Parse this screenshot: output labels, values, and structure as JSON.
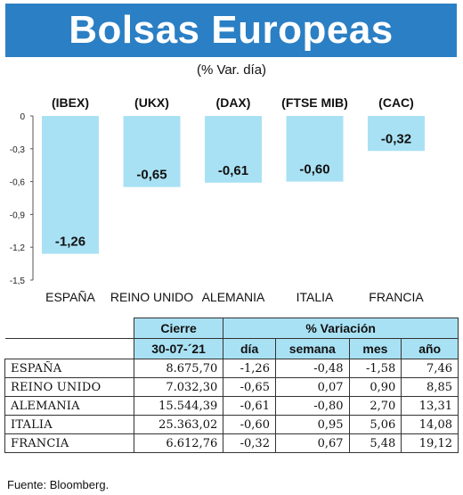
{
  "title": "Bolsas Europeas",
  "subtitle": "(% Var. día)",
  "chart_data": {
    "type": "bar",
    "indices": [
      "(IBEX)",
      "(UKX)",
      "(DAX)",
      "(FTSE MIB)",
      "(CAC)"
    ],
    "categories": [
      "ESPAÑA",
      "REINO UNIDO",
      "ALEMANIA",
      "ITALIA",
      "FRANCIA"
    ],
    "values": [
      -1.26,
      -0.65,
      -0.61,
      -0.6,
      -0.32
    ],
    "value_labels": [
      "-1,26",
      "-0,65",
      "-0,61",
      "-0,60",
      "-0,32"
    ],
    "ylim": [
      -1.5,
      0
    ],
    "yticks": [
      0,
      -0.3,
      -0.6,
      -0.9,
      -1.2,
      -1.5
    ],
    "ytick_labels": [
      "0",
      "-0,3",
      "-0,6",
      "-0,9",
      "-1,2",
      "-1,5"
    ],
    "bar_color": "#a9e1f4",
    "grid": false
  },
  "table": {
    "header_cierre": "Cierre",
    "header_variacion": "% Variación",
    "header_date": "30-07-´21",
    "header_dia": "día",
    "header_semana": "semana",
    "header_mes": "mes",
    "header_ano": "año",
    "rows": [
      {
        "name": "ESPAÑA",
        "cierre": "8.675,70",
        "dia": "-1,26",
        "semana": "-0,48",
        "mes": "-1,58",
        "ano": "7,46"
      },
      {
        "name": "REINO UNIDO",
        "cierre": "7.032,30",
        "dia": "-0,65",
        "semana": "0,07",
        "mes": "0,90",
        "ano": "8,85"
      },
      {
        "name": "ALEMANIA",
        "cierre": "15.544,39",
        "dia": "-0,61",
        "semana": "-0,80",
        "mes": "2,70",
        "ano": "13,31"
      },
      {
        "name": "ITALIA",
        "cierre": "25.363,02",
        "dia": "-0,60",
        "semana": "0,95",
        "mes": "5,06",
        "ano": "14,08"
      },
      {
        "name": "FRANCIA",
        "cierre": "6.612,76",
        "dia": "-0,32",
        "semana": "0,67",
        "mes": "5,48",
        "ano": "19,12"
      }
    ]
  },
  "source": "Fuente: Bloomberg.",
  "colors": {
    "banner": "#2b7fc4",
    "header_fill": "#a9e1f4"
  }
}
